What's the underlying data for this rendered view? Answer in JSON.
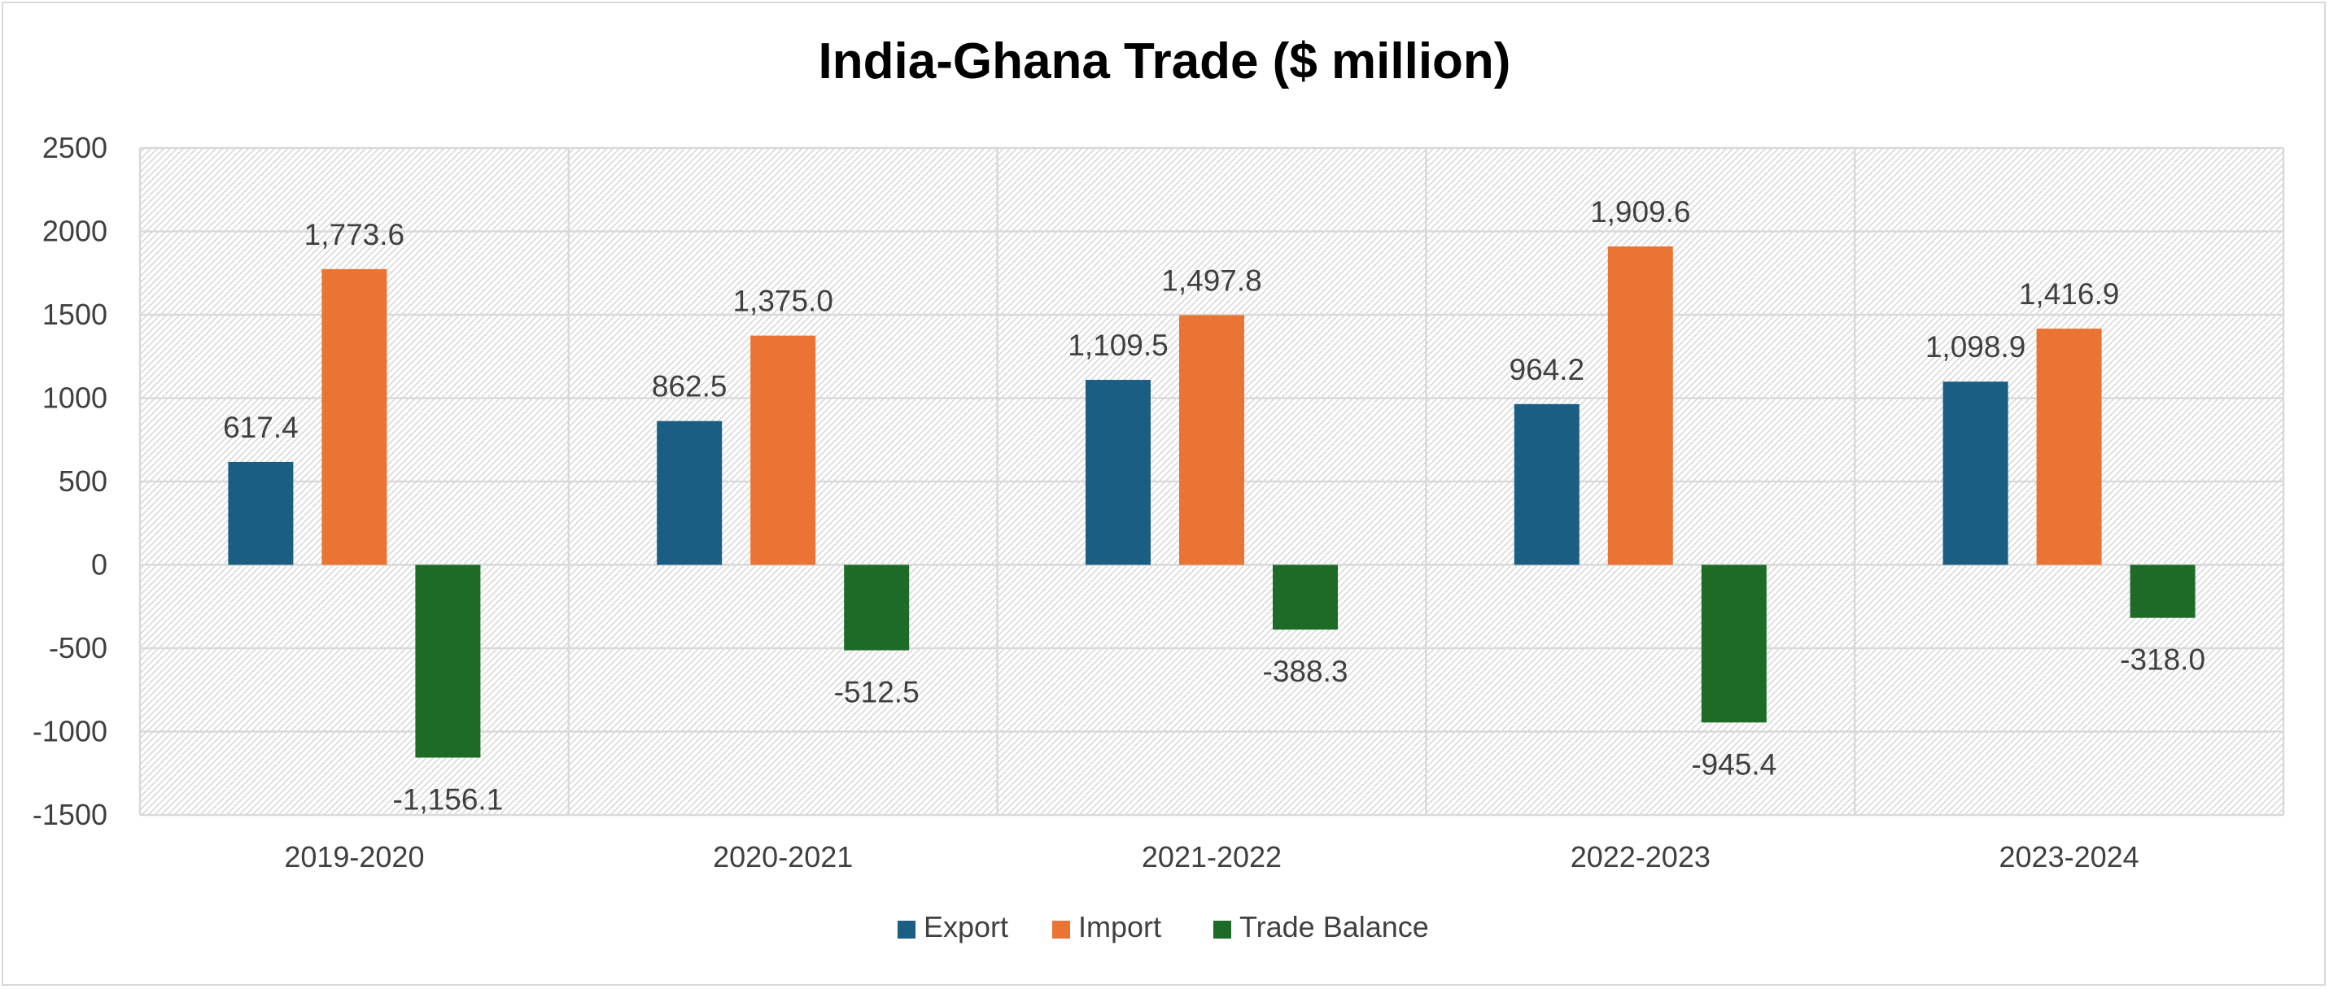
{
  "chart_data": {
    "type": "bar",
    "title": "India-Ghana Trade ($ million)",
    "categories": [
      "2019-2020",
      "2020-2021",
      "2021-2022",
      "2022-2023",
      "2023-2024"
    ],
    "series": [
      {
        "name": "Export",
        "color": "#1a5e84",
        "values": [
          617.4,
          862.5,
          1109.5,
          964.2,
          1098.9
        ],
        "labels": [
          "617.4",
          "862.5",
          "1,109.5",
          "964.2",
          "1,098.9"
        ]
      },
      {
        "name": "Import",
        "color": "#e97434",
        "values": [
          1773.6,
          1375.0,
          1497.8,
          1909.6,
          1416.9
        ],
        "labels": [
          "1,773.6",
          "1,375.0",
          "1,497.8",
          "1,909.6",
          "1,416.9"
        ]
      },
      {
        "name": "Trade Balance",
        "color": "#1e6b27",
        "values": [
          -1156.1,
          -512.5,
          -388.3,
          -945.4,
          -318.0
        ],
        "labels": [
          "-1,156.1",
          "-512.5",
          "-388.3",
          "-945.4",
          "-318.0"
        ]
      }
    ],
    "ylim": [
      -1500,
      2500
    ],
    "yticks": [
      2500,
      2000,
      1500,
      1000,
      500,
      0,
      -500,
      -1000,
      -1500
    ],
    "ytick_labels": [
      "2500",
      "2000",
      "1500",
      "1000",
      "500",
      "0",
      "-500",
      "-1000",
      "-1500"
    ],
    "grid": true,
    "legend": "bottom"
  }
}
